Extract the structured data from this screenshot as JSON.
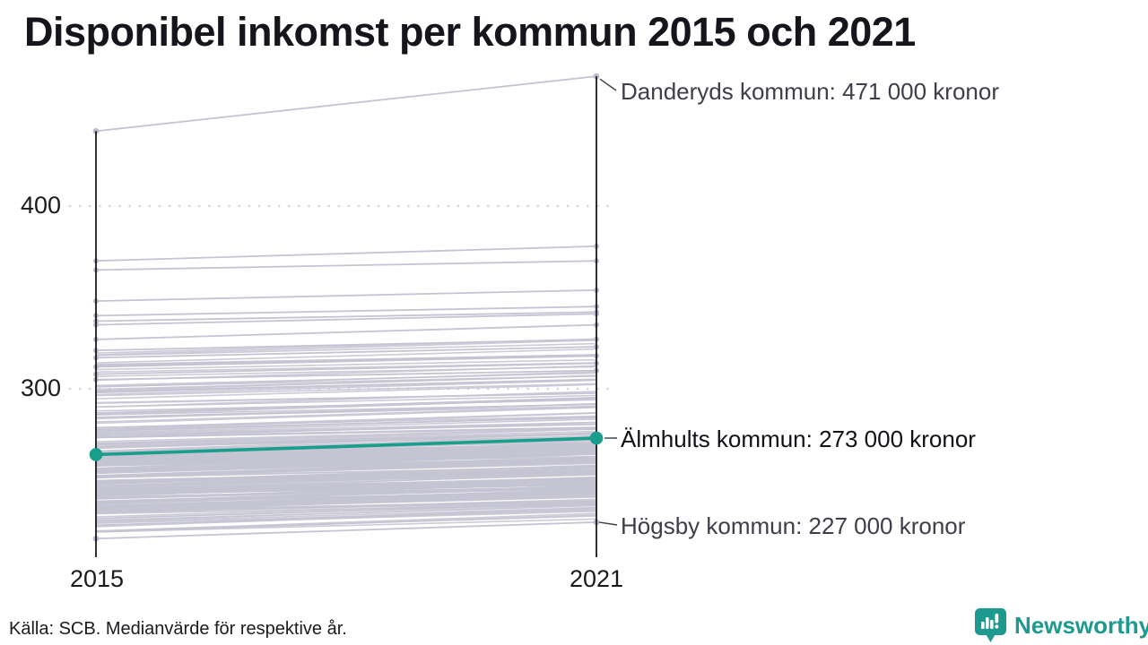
{
  "title": "Disponibel inkomst per kommun 2015 och 2021",
  "footer": {
    "source": "Källa: SCB. Medianvärde för respektive år."
  },
  "branding": {
    "name": "Newsworthy",
    "color": "#1d9a8f",
    "icon": "bar-chart-speech-bubble-icon"
  },
  "chart_data": {
    "type": "line",
    "subtype": "slope",
    "x_categories": [
      "2015",
      "2021"
    ],
    "yticks": [
      {
        "value": 300,
        "label": "300"
      },
      {
        "value": 400,
        "label": "400"
      }
    ],
    "value_unit": "tusen kronor",
    "highlight_series": {
      "name": "Älmhults kommun",
      "values": [
        264,
        273
      ],
      "color": "#1a9e8c",
      "label": "Älmhults kommun: 273 000 kronor"
    },
    "annotated_series": [
      {
        "name": "Danderyds kommun",
        "values": [
          441,
          471
        ],
        "label": "Danderyds kommun: 471 000 kronor"
      },
      {
        "name": "Högsby kommun",
        "values": [
          218,
          227
        ],
        "label": "Högsby kommun: 227 000 kronor"
      }
    ],
    "standout_lines": [
      [
        370,
        378
      ],
      [
        365,
        370
      ],
      [
        348,
        354
      ],
      [
        340,
        345
      ],
      [
        337,
        342
      ],
      [
        335,
        341
      ],
      [
        327,
        335
      ],
      [
        321,
        327
      ],
      [
        317,
        323
      ],
      [
        312,
        318
      ],
      [
        308,
        314
      ],
      [
        305,
        310
      ]
    ],
    "background_bands": [
      {
        "min": 302,
        "max": 321,
        "count": 12,
        "delta_min": 5,
        "delta_max": 8
      },
      {
        "min": 284,
        "max": 302,
        "count": 22,
        "delta_min": 5,
        "delta_max": 9
      },
      {
        "min": 266,
        "max": 284,
        "count": 26,
        "delta_min": 5,
        "delta_max": 9
      },
      {
        "min": 247,
        "max": 266,
        "count": 80,
        "delta_min": 5,
        "delta_max": 10
      },
      {
        "min": 231,
        "max": 247,
        "count": 70,
        "delta_min": 5,
        "delta_max": 10
      },
      {
        "min": 221,
        "max": 230,
        "count": 14,
        "delta_min": 7,
        "delta_max": 10
      }
    ],
    "line_color": "#c5c4d3",
    "dot_color": "#bcbbcb",
    "axis_color": "#0d0d12",
    "gridline_color": "#d6d6dc",
    "leader_color": "#3c3c46"
  }
}
